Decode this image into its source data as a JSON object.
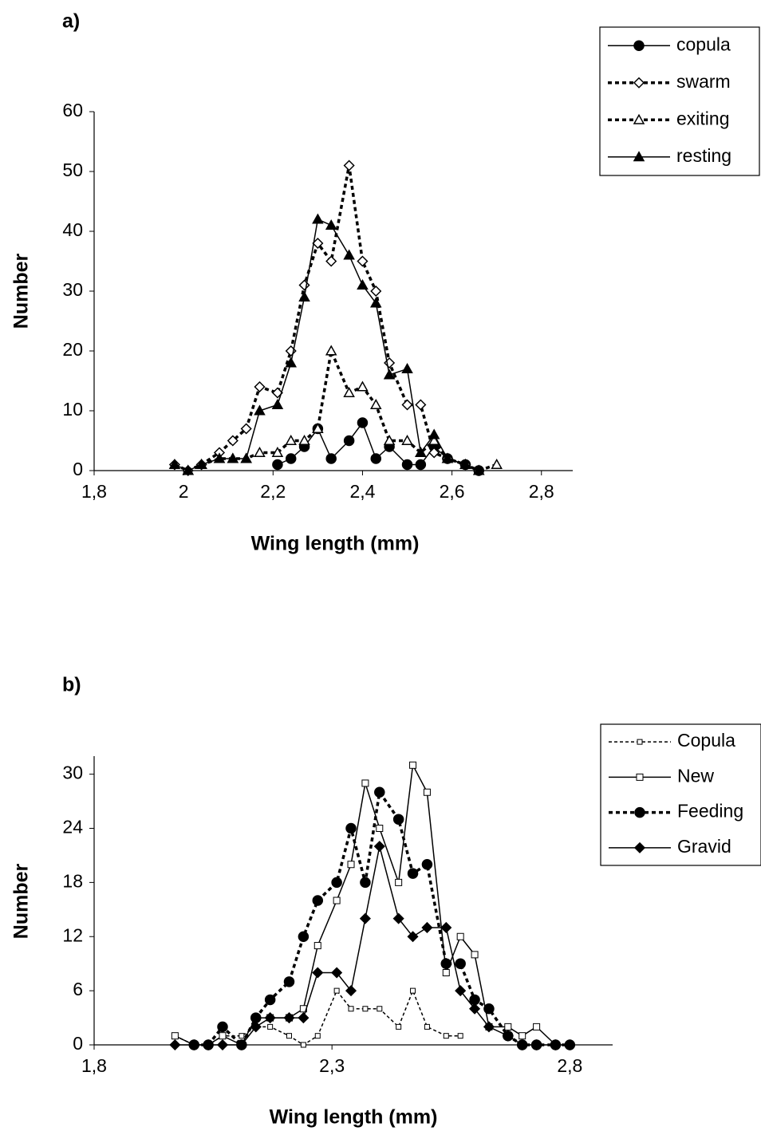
{
  "chart_data": [
    {
      "type": "line",
      "label": "a)",
      "xlabel": "Wing length (mm)",
      "ylabel": "Number",
      "x": [
        1.98,
        2.01,
        2.04,
        2.08,
        2.11,
        2.14,
        2.17,
        2.21,
        2.24,
        2.27,
        2.3,
        2.33,
        2.37,
        2.4,
        2.43,
        2.46,
        2.5,
        2.53,
        2.56,
        2.59,
        2.63,
        2.66,
        2.7
      ],
      "series": [
        {
          "name": "copula",
          "color": "#000000",
          "style": "solid",
          "marker": "filled-circle",
          "values": [
            null,
            null,
            null,
            null,
            null,
            null,
            null,
            1,
            2,
            4,
            7,
            2,
            5,
            8,
            2,
            4,
            1,
            1,
            4,
            2,
            1,
            0,
            null
          ]
        },
        {
          "name": "swarm",
          "color": "#000000",
          "style": "dotted",
          "marker": "open-diamond",
          "values": [
            1,
            0,
            1,
            3,
            5,
            7,
            14,
            13,
            20,
            31,
            38,
            35,
            51,
            35,
            30,
            18,
            11,
            11,
            3,
            2,
            1,
            0,
            null
          ]
        },
        {
          "name": "exiting",
          "color": "#000000",
          "style": "dotted",
          "marker": "open-triangle",
          "values": [
            null,
            0,
            1,
            2,
            2,
            2,
            3,
            3,
            5,
            5,
            7,
            20,
            13,
            14,
            11,
            5,
            5,
            3,
            5,
            2,
            1,
            0,
            1
          ]
        },
        {
          "name": "resting",
          "color": "#000000",
          "style": "solid",
          "marker": "filled-triangle",
          "values": [
            1,
            0,
            1,
            2,
            2,
            2,
            10,
            11,
            18,
            29,
            42,
            41,
            36,
            31,
            28,
            16,
            17,
            3,
            6,
            2,
            1,
            0,
            null
          ]
        }
      ],
      "xlim": [
        1.8,
        2.87
      ],
      "ylim": [
        0,
        60
      ],
      "xticks": [
        {
          "value": 1.8,
          "label": "1,8"
        },
        2,
        {
          "value": 2.2,
          "label": "2,2"
        },
        {
          "value": 2.4,
          "label": "2,4"
        },
        {
          "value": 2.6,
          "label": "2,6"
        },
        {
          "value": 2.8,
          "label": "2,8"
        }
      ],
      "yticks": [
        0,
        10,
        20,
        30,
        40,
        50,
        60
      ],
      "grid": false,
      "legend": "top-right"
    },
    {
      "type": "line",
      "label": "b)",
      "xlabel": "Wing length (mm)",
      "ylabel": "Number",
      "x": [
        1.97,
        2.01,
        2.04,
        2.07,
        2.11,
        2.14,
        2.17,
        2.21,
        2.24,
        2.27,
        2.31,
        2.34,
        2.37,
        2.4,
        2.44,
        2.47,
        2.5,
        2.54,
        2.57,
        2.6,
        2.63,
        2.67,
        2.7,
        2.73,
        2.77,
        2.8
      ],
      "series": [
        {
          "name": "Copula",
          "color": "#000000",
          "style": "dotted-thin",
          "marker": "small-open-square",
          "values": [
            1,
            0,
            0,
            1,
            1,
            2,
            2,
            1,
            0,
            1,
            6,
            4,
            4,
            4,
            2,
            6,
            2,
            1,
            1,
            null,
            null,
            null,
            null,
            null,
            null,
            null
          ]
        },
        {
          "name": "New",
          "color": "#000000",
          "style": "solid",
          "marker": "open-square",
          "values": [
            1,
            0,
            0,
            1,
            0,
            3,
            3,
            3,
            4,
            11,
            16,
            20,
            29,
            24,
            18,
            31,
            28,
            8,
            12,
            10,
            2,
            2,
            1,
            2,
            0,
            null
          ]
        },
        {
          "name": "Feeding",
          "color": "#000000",
          "style": "dotted",
          "marker": "filled-circle",
          "values": [
            null,
            0,
            0,
            2,
            0,
            3,
            5,
            7,
            12,
            16,
            18,
            24,
            18,
            28,
            25,
            19,
            20,
            9,
            9,
            5,
            4,
            1,
            0,
            0,
            0,
            0
          ]
        },
        {
          "name": "Gravid",
          "color": "#000000",
          "style": "solid",
          "marker": "filled-diamond",
          "values": [
            0,
            0,
            0,
            0,
            0,
            2,
            3,
            3,
            3,
            8,
            8,
            6,
            14,
            22,
            14,
            12,
            13,
            13,
            6,
            4,
            2,
            1,
            0,
            0,
            0,
            0
          ]
        }
      ],
      "xlim": [
        1.8,
        2.89
      ],
      "ylim": [
        0,
        32
      ],
      "xticks": [
        {
          "value": 1.8,
          "label": "1,8"
        },
        {
          "value": 2.3,
          "label": "2,3"
        },
        {
          "value": 2.8,
          "label": "2,8"
        }
      ],
      "yticks": [
        0,
        6,
        12,
        18,
        24,
        30
      ],
      "grid": false,
      "legend": "top-right"
    }
  ]
}
